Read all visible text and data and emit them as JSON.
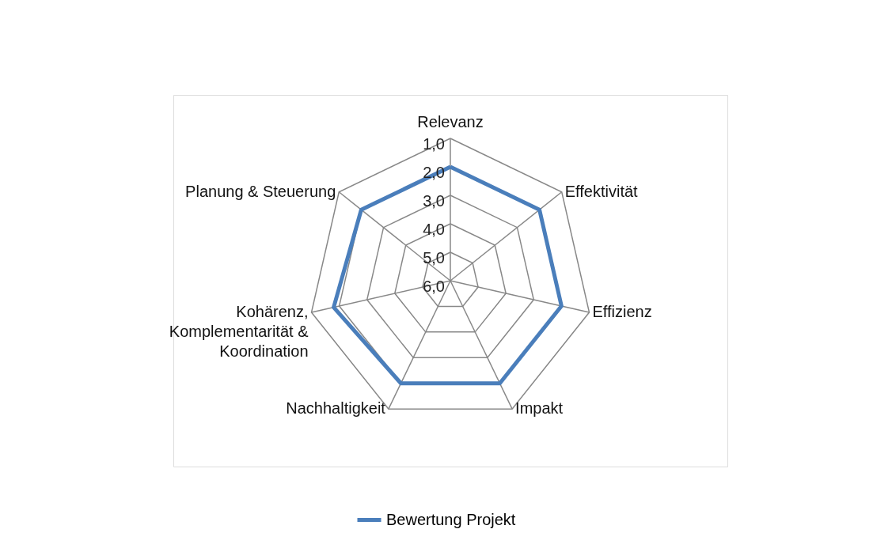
{
  "chart_data": {
    "type": "radar",
    "categories": [
      "Relevanz",
      "Effektivität",
      "Effizienz",
      "Impakt",
      "Nachhaltigkeit",
      "Kohärenz, Komplementarität & Koordination",
      "Planung & Steuerung"
    ],
    "series": [
      {
        "name": "Bewertung Projekt",
        "color": "#4a7ebb",
        "values": [
          2.0,
          2.0,
          2.0,
          2.0,
          2.0,
          1.8,
          2.0
        ]
      }
    ],
    "ylim": [
      6,
      1
    ],
    "yticks": [
      {
        "value": 1,
        "label": "1,0"
      },
      {
        "value": 2,
        "label": "2,0"
      },
      {
        "value": 3,
        "label": "3,0"
      },
      {
        "value": 4,
        "label": "4,0"
      },
      {
        "value": 5,
        "label": "5,0"
      },
      {
        "value": 6,
        "label": "6,0"
      }
    ],
    "grid": true,
    "legend": "bottom"
  }
}
